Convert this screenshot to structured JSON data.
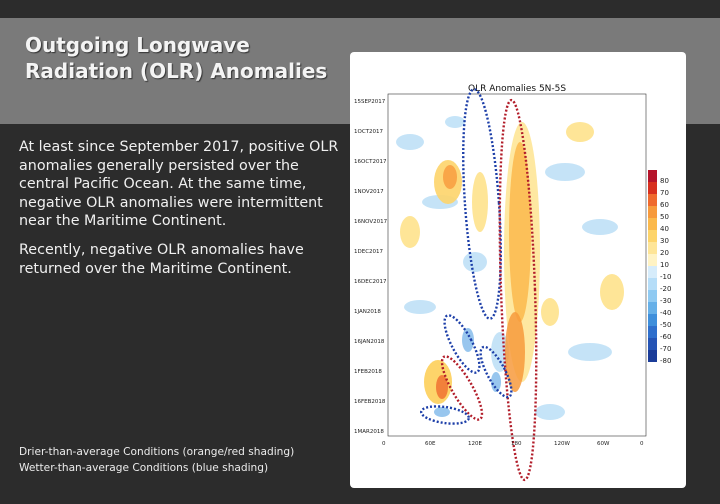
{
  "slide": {
    "title": "Outgoing Longwave Radiation (OLR) Anomalies",
    "paragraph1": "At least since September 2017, positive OLR anomalies generally persisted over the central Pacific Ocean.  At the same time, negative OLR anomalies were intermittent near the Maritime Continent.",
    "paragraph2": "Recently, negative OLR anomalies have returned over the Maritime Continent.",
    "legend_line1": "Drier-than-average Conditions (orange/red shading)",
    "legend_line2": "Wetter-than-average Conditions (blue shading)"
  },
  "figure": {
    "title": "OLR Anomalies 5N-5S",
    "y_ticks": [
      "15SEP2017",
      "1OCT2017",
      "16OCT2017",
      "1NOV2017",
      "16NOV2017",
      "1DEC2017",
      "16DEC2017",
      "1JAN2018",
      "16JAN2018",
      "1FEB2018",
      "16FEB2018",
      "1MAR2018"
    ],
    "x_ticks": [
      "0",
      "60E",
      "120E",
      "180",
      "120W",
      "60W",
      "0"
    ],
    "colorbar_ticks": [
      "80",
      "70",
      "60",
      "50",
      "40",
      "30",
      "20",
      "10",
      "-10",
      "-20",
      "-30",
      "-40",
      "-50",
      "-60",
      "-70",
      "-80"
    ],
    "colorbar_colors": [
      "#b5142a",
      "#d7301f",
      "#ef6a2e",
      "#f79a3c",
      "#fbb94c",
      "#fdd46a",
      "#fee597",
      "#fff3c4",
      "#d6ecfb",
      "#b5ddf8",
      "#8fcaf2",
      "#66b0e8",
      "#3f8fdb",
      "#2f6fcc",
      "#2554b5",
      "#1b3c99"
    ]
  }
}
